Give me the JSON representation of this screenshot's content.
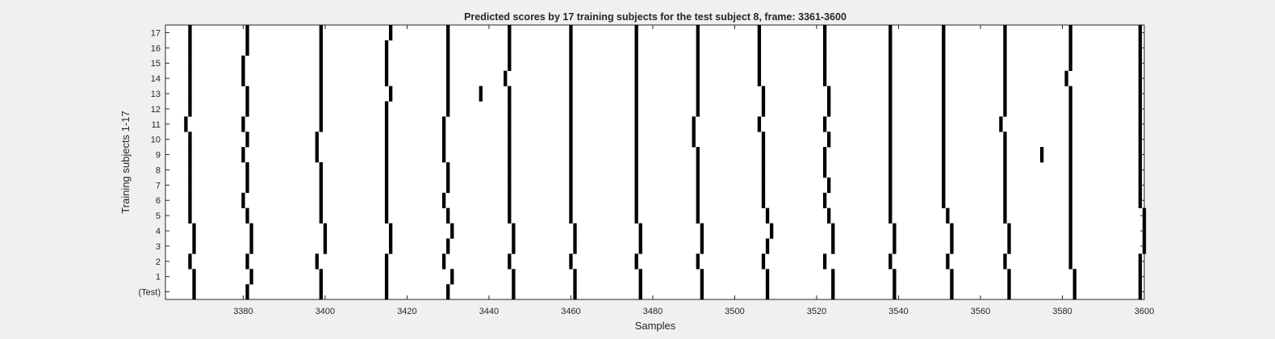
{
  "chart_data": {
    "type": "heatmap",
    "title": "Predicted scores by 17 training subjects for the test subject 8, frame: 3361-3600",
    "xlabel": "Samples",
    "ylabel": "Training subjects 1-17",
    "xlim": [
      3361,
      3600
    ],
    "x_ticks": [
      3380,
      3400,
      3420,
      3440,
      3460,
      3480,
      3500,
      3520,
      3540,
      3560,
      3580,
      3600
    ],
    "y_tick_labels": [
      "(Test)",
      "1",
      "2",
      "3",
      "4",
      "5",
      "6",
      "7",
      "8",
      "9",
      "10",
      "11",
      "12",
      "13",
      "14",
      "15",
      "16",
      "17"
    ],
    "colors": {
      "mark": "#000000",
      "background": "#ffffff",
      "figure": "#f0f0f0"
    },
    "rows": [
      {
        "row": "(Test)",
        "x": [
          3368,
          3381,
          3399,
          3415,
          3430,
          3446,
          3461,
          3477,
          3492,
          3508,
          3524,
          3539,
          3553,
          3567,
          3583,
          3599
        ]
      },
      {
        "row": "1",
        "x": [
          3368,
          3382,
          3399,
          3415,
          3431,
          3446,
          3461,
          3477,
          3492,
          3508,
          3524,
          3539,
          3553,
          3567,
          3583,
          3599
        ]
      },
      {
        "row": "2",
        "x": [
          3367,
          3381,
          3398,
          3415,
          3429,
          3445,
          3460,
          3476,
          3491,
          3507,
          3522,
          3538,
          3552,
          3566,
          3582,
          3599
        ]
      },
      {
        "row": "3",
        "x": [
          3368,
          3382,
          3400,
          3416,
          3430,
          3446,
          3461,
          3477,
          3492,
          3508,
          3524,
          3539,
          3553,
          3567,
          3582,
          3600
        ]
      },
      {
        "row": "4",
        "x": [
          3368,
          3382,
          3400,
          3416,
          3431,
          3446,
          3461,
          3477,
          3492,
          3509,
          3524,
          3539,
          3553,
          3567,
          3582,
          3600
        ]
      },
      {
        "row": "5",
        "x": [
          3367,
          3381,
          3399,
          3415,
          3430,
          3445,
          3460,
          3476,
          3491,
          3508,
          3523,
          3538,
          3552,
          3566,
          3582,
          3600
        ]
      },
      {
        "row": "6",
        "x": [
          3367,
          3380,
          3399,
          3415,
          3429,
          3445,
          3460,
          3476,
          3491,
          3507,
          3522,
          3538,
          3551,
          3566,
          3582,
          3599
        ]
      },
      {
        "row": "7",
        "x": [
          3367,
          3381,
          3399,
          3415,
          3430,
          3445,
          3460,
          3476,
          3491,
          3507,
          3523,
          3538,
          3551,
          3566,
          3582,
          3599
        ]
      },
      {
        "row": "8",
        "x": [
          3367,
          3381,
          3399,
          3415,
          3430,
          3445,
          3460,
          3476,
          3491,
          3507,
          3522,
          3538,
          3551,
          3566,
          3582,
          3599
        ]
      },
      {
        "row": "9",
        "x": [
          3367,
          3380,
          3398,
          3415,
          3429,
          3445,
          3460,
          3476,
          3491,
          3507,
          3522,
          3538,
          3551,
          3566,
          3575,
          3582,
          3599
        ]
      },
      {
        "row": "10",
        "x": [
          3367,
          3381,
          3398,
          3415,
          3429,
          3445,
          3460,
          3476,
          3490,
          3507,
          3523,
          3538,
          3551,
          3566,
          3582,
          3599
        ]
      },
      {
        "row": "11",
        "x": [
          3366,
          3380,
          3399,
          3415,
          3429,
          3445,
          3460,
          3476,
          3490,
          3506,
          3522,
          3538,
          3551,
          3565,
          3582,
          3599
        ]
      },
      {
        "row": "12",
        "x": [
          3367,
          3381,
          3399,
          3415,
          3430,
          3445,
          3460,
          3476,
          3491,
          3507,
          3523,
          3538,
          3551,
          3566,
          3582,
          3599
        ]
      },
      {
        "row": "13",
        "x": [
          3367,
          3381,
          3399,
          3416,
          3430,
          3438,
          3445,
          3460,
          3476,
          3491,
          3507,
          3523,
          3538,
          3551,
          3566,
          3582,
          3599
        ]
      },
      {
        "row": "14",
        "x": [
          3367,
          3380,
          3399,
          3415,
          3430,
          3444,
          3460,
          3476,
          3491,
          3506,
          3522,
          3538,
          3551,
          3566,
          3581,
          3599
        ]
      },
      {
        "row": "15",
        "x": [
          3367,
          3380,
          3399,
          3415,
          3430,
          3445,
          3460,
          3476,
          3491,
          3506,
          3522,
          3538,
          3551,
          3566,
          3582,
          3599
        ]
      },
      {
        "row": "16",
        "x": [
          3367,
          3381,
          3399,
          3415,
          3430,
          3445,
          3460,
          3476,
          3491,
          3506,
          3522,
          3538,
          3551,
          3566,
          3582,
          3599
        ]
      },
      {
        "row": "17",
        "x": [
          3367,
          3381,
          3399,
          3416,
          3430,
          3445,
          3460,
          3476,
          3491,
          3506,
          3522,
          3538,
          3551,
          3566,
          3582,
          3599
        ]
      }
    ]
  }
}
